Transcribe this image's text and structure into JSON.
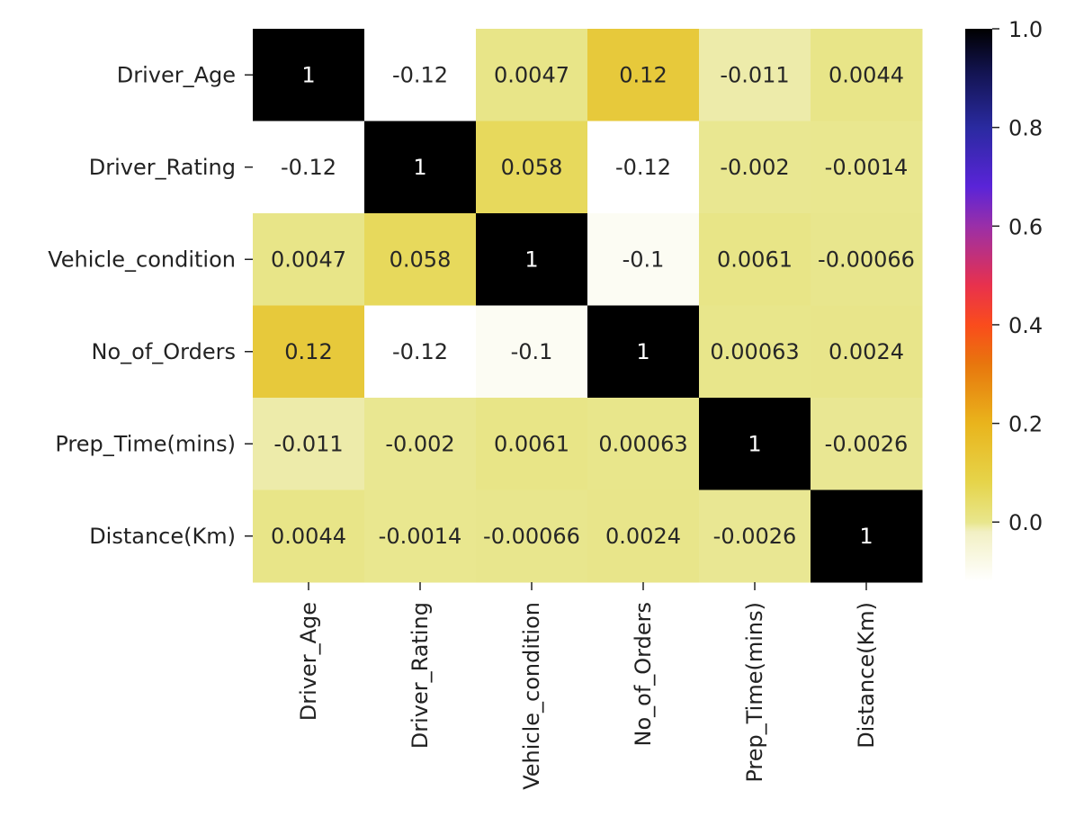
{
  "chart_data": {
    "type": "heatmap",
    "title": "",
    "xlabel": "",
    "ylabel": "",
    "x_categories": [
      "Driver_Age",
      "Driver_Rating",
      "Vehicle_condition",
      "No_of_Orders",
      "Prep_Time(mins)",
      "Distance(Km)"
    ],
    "y_categories": [
      "Driver_Age",
      "Driver_Rating",
      "Vehicle_condition",
      "No_of_Orders",
      "Prep_Time(mins)",
      "Distance(Km)"
    ],
    "values": [
      [
        1,
        -0.12,
        0.0047,
        0.12,
        -0.011,
        0.0044
      ],
      [
        -0.12,
        1,
        0.058,
        -0.12,
        -0.002,
        -0.0014
      ],
      [
        0.0047,
        0.058,
        1,
        -0.1,
        0.0061,
        -0.00066
      ],
      [
        0.12,
        -0.12,
        -0.1,
        1,
        0.00063,
        0.0024
      ],
      [
        -0.011,
        -0.002,
        0.0061,
        0.00063,
        1,
        -0.0026
      ],
      [
        0.0044,
        -0.0014,
        -0.00066,
        0.0024,
        -0.0026,
        1
      ]
    ],
    "annotations": [
      [
        "1",
        "-0.12",
        "0.0047",
        "0.12",
        "-0.011",
        "0.0044"
      ],
      [
        "-0.12",
        "1",
        "0.058",
        "-0.12",
        "-0.002",
        "-0.0014"
      ],
      [
        "0.0047",
        "0.058",
        "1",
        "-0.1",
        "0.0061",
        "-0.00066"
      ],
      [
        "0.12",
        "-0.12",
        "-0.1",
        "1",
        "0.00063",
        "0.0024"
      ],
      [
        "-0.011",
        "-0.002",
        "0.0061",
        "0.00063",
        "1",
        "-0.0026"
      ],
      [
        "0.0044",
        "-0.0014",
        "-0.00066",
        "0.0024",
        "-0.0026",
        "1"
      ]
    ],
    "colormap": "CMRmap_r",
    "vmin": -0.12,
    "vmax": 1.0,
    "colorbar_ticks": [
      0.0,
      0.2,
      0.4,
      0.6,
      0.8,
      1.0
    ],
    "colorbar_tick_labels": [
      "0.0",
      "0.2",
      "0.4",
      "0.6",
      "0.8",
      "1.0"
    ],
    "grid": false,
    "legend": "colorbar-right"
  }
}
